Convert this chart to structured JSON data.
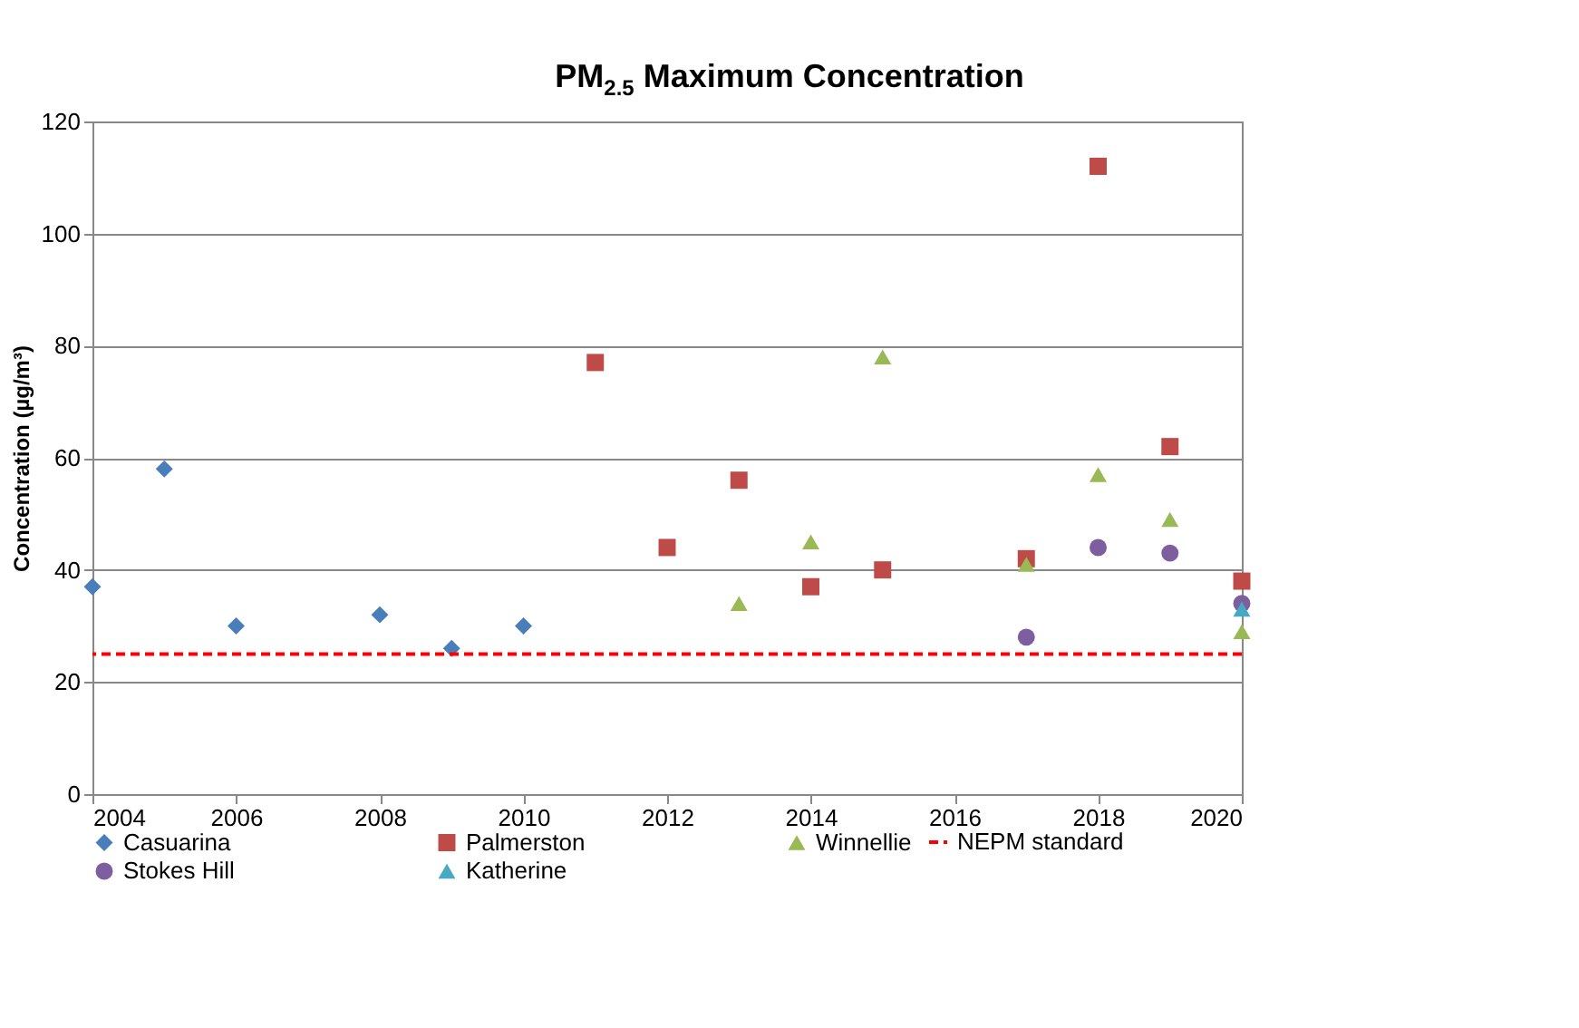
{
  "chart_data": {
    "type": "scatter",
    "title": "PM$_{2.5}$ Maximum Concentration",
    "ylabel": "Concentration (µg/m³)",
    "xlim": [
      2004,
      2020
    ],
    "xticks": [
      2004,
      2006,
      2008,
      2010,
      2012,
      2014,
      2016,
      2018,
      2020
    ],
    "ylim": [
      0,
      120
    ],
    "yticks": [
      0,
      20,
      40,
      60,
      80,
      100,
      120
    ],
    "grid": "y",
    "legend": "bottom",
    "series": [
      {
        "name": "Casuarina",
        "color": "#4a7ebb",
        "marker": "diamond",
        "x": [
          2004,
          2005,
          2006,
          2008,
          2009,
          2010
        ],
        "values": [
          37,
          58,
          30,
          32,
          26,
          30
        ]
      },
      {
        "name": "Palmerston",
        "color": "#be4b48",
        "marker": "square",
        "x": [
          2011,
          2012,
          2013,
          2014,
          2015,
          2017,
          2018,
          2019,
          2020
        ],
        "values": [
          77,
          44,
          56,
          37,
          40,
          42,
          112,
          62,
          38
        ]
      },
      {
        "name": "Winnellie",
        "color": "#98b954",
        "marker": "triangle",
        "x": [
          2013,
          2014,
          2015,
          2017,
          2018,
          2019,
          2020
        ],
        "values": [
          34,
          45,
          78,
          41,
          57,
          49,
          29
        ]
      },
      {
        "name": "Stokes Hill",
        "color": "#7d5fa0",
        "marker": "circle",
        "x": [
          2017,
          2018,
          2019,
          2020
        ],
        "values": [
          28,
          44,
          43,
          34
        ]
      },
      {
        "name": "Katherine",
        "color": "#46aac5",
        "marker": "triangle",
        "x": [
          2020
        ],
        "values": [
          33
        ]
      }
    ],
    "ref_lines": [
      {
        "axis": "y",
        "value": 25,
        "label": "NEPM standard",
        "color": "#ff0000",
        "line_style": "dashed"
      }
    ]
  }
}
